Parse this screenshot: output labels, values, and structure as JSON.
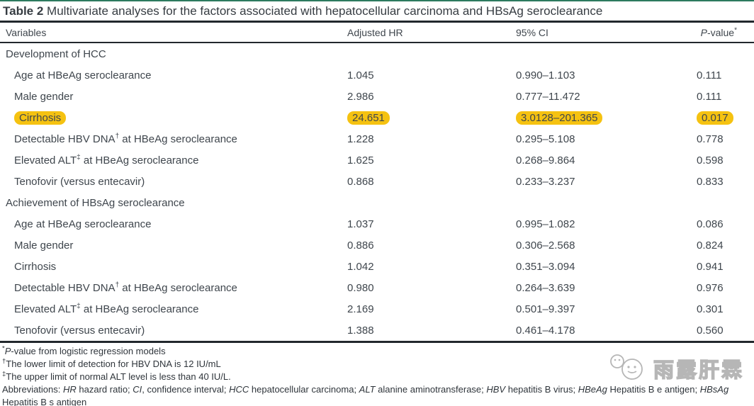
{
  "title": {
    "label": "Table 2",
    "caption": " Multivariate analyses for the factors associated with hepatocellular carcinoma and HBsAg seroclearance"
  },
  "columns": {
    "variables": "Variables",
    "adjusted_hr": "Adjusted HR",
    "ci": "95% CI",
    "p_em": "P",
    "p_text": "-value",
    "p_sup": "*"
  },
  "table": {
    "sections": [
      {
        "header": "Development of HCC",
        "rows": [
          {
            "label": "Age at HBeAg seroclearance",
            "sup": "",
            "label2": "",
            "hr": "1.045",
            "ci": "0.990–1.103",
            "p": "0.111",
            "highlight": false
          },
          {
            "label": "Male gender",
            "sup": "",
            "label2": "",
            "hr": "2.986",
            "ci": "0.777–11.472",
            "p": "0.111",
            "highlight": false
          },
          {
            "label": "Cirrhosis",
            "sup": "",
            "label2": "",
            "hr": "24.651",
            "ci": "3.0128–201.365",
            "p": "0.017",
            "highlight": true
          },
          {
            "label": "Detectable HBV DNA",
            "sup": "†",
            "label2": " at HBeAg seroclearance",
            "hr": "1.228",
            "ci": "0.295–5.108",
            "p": "0.778",
            "highlight": false
          },
          {
            "label": "Elevated ALT",
            "sup": "‡",
            "label2": " at HBeAg seroclearance",
            "hr": "1.625",
            "ci": "0.268–9.864",
            "p": "0.598",
            "highlight": false
          },
          {
            "label": "Tenofovir (versus entecavir)",
            "sup": "",
            "label2": "",
            "hr": "0.868",
            "ci": "0.233–3.237",
            "p": "0.833",
            "highlight": false
          }
        ]
      },
      {
        "header": "Achievement of HBsAg seroclearance",
        "rows": [
          {
            "label": "Age at HBeAg seroclearance",
            "sup": "",
            "label2": "",
            "hr": "1.037",
            "ci": "0.995–1.082",
            "p": "0.086",
            "highlight": false
          },
          {
            "label": "Male gender",
            "sup": "",
            "label2": "",
            "hr": "0.886",
            "ci": "0.306–2.568",
            "p": "0.824",
            "highlight": false
          },
          {
            "label": "Cirrhosis",
            "sup": "",
            "label2": "",
            "hr": "1.042",
            "ci": "0.351–3.094",
            "p": "0.941",
            "highlight": false
          },
          {
            "label": "Detectable HBV DNA",
            "sup": "†",
            "label2": " at HBeAg seroclearance",
            "hr": "0.980",
            "ci": "0.264–3.639",
            "p": "0.976",
            "highlight": false
          },
          {
            "label": "Elevated ALT",
            "sup": "‡",
            "label2": " at HBeAg seroclearance",
            "hr": "2.169",
            "ci": "0.501–9.397",
            "p": "0.301",
            "highlight": false
          },
          {
            "label": "Tenofovir (versus entecavir)",
            "sup": "",
            "label2": "",
            "hr": "1.388",
            "ci": "0.461–4.178",
            "p": "0.560",
            "highlight": false
          }
        ]
      }
    ]
  },
  "footnotes": [
    {
      "sup": "*",
      "em": "P",
      "text": "-value from logistic regression models"
    },
    {
      "sup": "†",
      "em": "",
      "text": "The lower limit of detection for HBV DNA is 12 IU/mL"
    },
    {
      "sup": "‡",
      "em": "",
      "text": "The upper limit of normal ALT level is less than 40 IU/L."
    }
  ],
  "abbreviations": {
    "prefix": "Abbreviations: ",
    "items": [
      {
        "abbr": "HR",
        "desc": " hazard ratio; "
      },
      {
        "abbr": "CI",
        "desc": ", confidence interval; "
      },
      {
        "abbr": "HCC",
        "desc": " hepatocellular carcinoma; "
      },
      {
        "abbr": "ALT",
        "desc": " alanine aminotransferase; "
      },
      {
        "abbr": "HBV",
        "desc": " hepatitis B virus; "
      },
      {
        "abbr": "HBeAg",
        "desc": " Hepatitis B e antigen; "
      },
      {
        "abbr": "HBsAg",
        "desc": " Hepatitis B s antigen"
      }
    ]
  },
  "watermark": {
    "text": "雨露肝霖"
  },
  "colors": {
    "highlight": "#f5c211",
    "rule": "#22282d",
    "top_accent": "#2c7a5f",
    "text": "#3f464d",
    "watermark_gray": "#b6b6b6"
  }
}
